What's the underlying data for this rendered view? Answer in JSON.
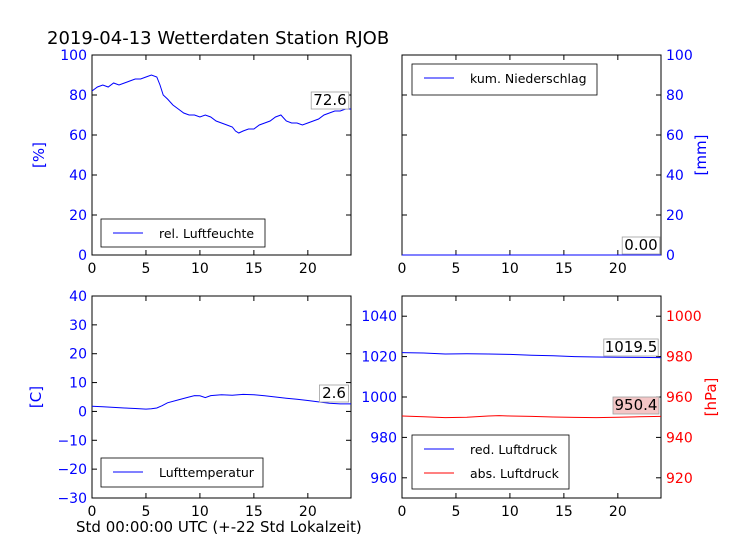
{
  "figure": {
    "title": "2019-04-13 Wetterdaten Station RJOB",
    "xlabel": "Std 00:00:00 UTC (+-22 Std Lokalzeit)"
  },
  "colors": {
    "blue": "#0000ff",
    "red": "#ff0000",
    "black": "#000000"
  },
  "chart_data": [
    {
      "id": "humidity",
      "type": "line",
      "xlim": [
        0,
        24
      ],
      "ylim": [
        0,
        100
      ],
      "xticks": [
        0,
        5,
        10,
        15,
        20
      ],
      "yticks": [
        0,
        20,
        40,
        60,
        80,
        100
      ],
      "ylabel": "[%]",
      "legend": "lower-left",
      "series": [
        {
          "name": "rel. Luftfeuchte",
          "color": "#0000ff",
          "x": [
            0,
            0.5,
            1,
            1.5,
            2,
            2.5,
            3,
            3.5,
            4,
            4.5,
            5,
            5.5,
            6,
            6.3,
            6.6,
            7,
            7.5,
            8,
            8.5,
            9,
            9.5,
            10,
            10.5,
            11,
            11.5,
            12,
            12.5,
            13,
            13.3,
            13.6,
            14,
            14.5,
            15,
            15.5,
            16,
            16.5,
            17,
            17.5,
            18,
            18.5,
            19,
            19.5,
            20,
            20.5,
            21,
            21.5,
            22,
            22.5,
            23,
            23.5,
            24
          ],
          "values": [
            82,
            84,
            85,
            84,
            86,
            85,
            86,
            87,
            88,
            88,
            89,
            90,
            89,
            85,
            80,
            78,
            75,
            73,
            71,
            70,
            70,
            69,
            70,
            69,
            67,
            66,
            65,
            64,
            62,
            61,
            62,
            63,
            63,
            65,
            66,
            67,
            69,
            70,
            67,
            66,
            66,
            65,
            66,
            67,
            68,
            70,
            71,
            72,
            72,
            73,
            73
          ]
        }
      ],
      "annotation": "72.6"
    },
    {
      "id": "precipitation",
      "type": "line",
      "xlim": [
        0,
        24
      ],
      "ylim": [
        0,
        100
      ],
      "xticks": [
        0,
        5,
        10,
        15,
        20
      ],
      "yticks": [
        0,
        20,
        40,
        60,
        80,
        100
      ],
      "ylabel": "[mm]",
      "legend": "top-left",
      "series": [
        {
          "name": "kum. Niederschlag",
          "color": "#0000ff",
          "x": [
            0,
            24
          ],
          "values": [
            0,
            0
          ]
        }
      ],
      "annotation": "0.00"
    },
    {
      "id": "temperature",
      "type": "line",
      "xlim": [
        0,
        24
      ],
      "ylim": [
        -30,
        40
      ],
      "xticks": [
        0,
        5,
        10,
        15,
        20
      ],
      "yticks": [
        -30,
        -20,
        -10,
        0,
        10,
        20,
        30,
        40
      ],
      "ylabel": "[C]",
      "legend": "lower-left",
      "series": [
        {
          "name": "Lufttemperatur",
          "color": "#0000ff",
          "x": [
            0,
            1,
            2,
            3,
            4,
            5,
            5.5,
            6,
            6.5,
            7,
            8,
            9,
            9.5,
            10,
            10.5,
            11,
            12,
            13,
            14,
            15,
            16,
            17,
            18,
            19,
            20,
            21,
            22,
            23,
            24
          ],
          "values": [
            1.8,
            1.6,
            1.4,
            1.2,
            1.0,
            0.8,
            0.9,
            1.2,
            2.0,
            3.0,
            4.0,
            5.0,
            5.5,
            5.4,
            4.8,
            5.5,
            5.8,
            5.6,
            5.9,
            5.8,
            5.4,
            5.0,
            4.6,
            4.2,
            3.8,
            3.3,
            2.8,
            2.6,
            2.6
          ]
        }
      ],
      "annotation": "2.6"
    },
    {
      "id": "pressure",
      "type": "line",
      "xlim": [
        0,
        24
      ],
      "ylim": [
        950,
        1050
      ],
      "ylim_right": [
        910,
        1010
      ],
      "xticks": [
        0,
        5,
        10,
        15,
        20
      ],
      "yticks": [
        960,
        980,
        1000,
        1020,
        1040
      ],
      "yticks_right": [
        920,
        940,
        960,
        980,
        1000
      ],
      "ylabel_right": "[hPa]",
      "legend": "lower-left",
      "series": [
        {
          "name": "red. Luftdruck",
          "color": "#0000ff",
          "axis": "left",
          "x": [
            0,
            2,
            4,
            6,
            8,
            10,
            12,
            14,
            16,
            18,
            20,
            22,
            24
          ],
          "values": [
            1022,
            1021.8,
            1021.3,
            1021.4,
            1021.3,
            1021.1,
            1020.7,
            1020.4,
            1020.0,
            1019.8,
            1019.7,
            1019.6,
            1019.5
          ]
        },
        {
          "name": "abs. Luftdruck",
          "color": "#ff0000",
          "axis": "right",
          "x": [
            0,
            2,
            4,
            6,
            8,
            9,
            10,
            12,
            14,
            16,
            18,
            20,
            22,
            24
          ],
          "values": [
            950.6,
            950.2,
            949.8,
            950.0,
            950.6,
            950.8,
            950.6,
            950.4,
            950.1,
            949.9,
            949.8,
            950.0,
            950.2,
            950.4
          ]
        }
      ],
      "annotations": [
        {
          "text": "1019.5",
          "axis": "left",
          "color": "#0000ff",
          "fill": "#ffffff"
        },
        {
          "text": "950.4",
          "axis": "right",
          "color": "#ff0000",
          "fill": "#f4c6c6"
        }
      ]
    }
  ]
}
